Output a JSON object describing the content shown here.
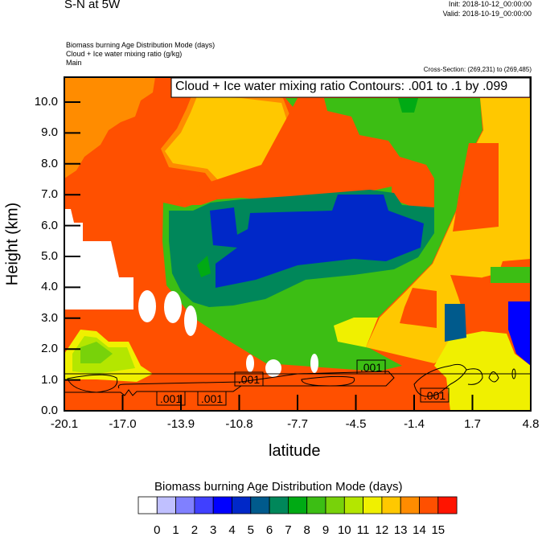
{
  "header": {
    "title": "S-N at 5W",
    "init": "Init: 2018-10-12_00:00:00",
    "valid": "Valid: 2018-10-19_00:00:00",
    "field1": "Biomass burning Age Distribution Mode   (days)",
    "field2": "Cloud + Ice water mixing ratio   (g/kg)",
    "field3": "Main",
    "cross_section": "Cross-Section: (269,231) to (269,485)"
  },
  "chart_data": {
    "type": "heatmap",
    "xlabel": "latitude",
    "ylabel": "Height (km)",
    "xlim": [
      -20.1,
      4.8
    ],
    "ylim": [
      0.0,
      10.8
    ],
    "x_ticks": [
      "-20.1",
      "-17.0",
      "-13.9",
      "-10.8",
      "-7.7",
      "-4.5",
      "-1.4",
      "1.7",
      "4.8"
    ],
    "y_ticks": [
      "0.0",
      "1.0",
      "2.0",
      "3.0",
      "4.0",
      "5.0",
      "6.0",
      "7.0",
      "8.0",
      "9.0",
      "10.0"
    ],
    "contour_title": "Cloud + Ice water mixing ratio Contours: .001 to .1 by .099",
    "contour_labels": [
      ".001",
      ".001",
      ".001",
      ".001",
      ".001"
    ],
    "colorbar": {
      "title": "Biomass burning Age Distribution Mode  (days)",
      "labels": [
        "0",
        "1",
        "2",
        "3",
        "4",
        "5",
        "6",
        "7",
        "8",
        "9",
        "10",
        "11",
        "12",
        "13",
        "14",
        "15"
      ],
      "colors": [
        "#ffffff",
        "#c0c0ff",
        "#8080ff",
        "#4040ff",
        "#0000ff",
        "#0028c8",
        "#005a8c",
        "#00875a",
        "#00aa14",
        "#3cbe14",
        "#78d20a",
        "#b4e600",
        "#f0f000",
        "#ffc800",
        "#ff8c00",
        "#ff5000",
        "#ff1400"
      ]
    }
  }
}
